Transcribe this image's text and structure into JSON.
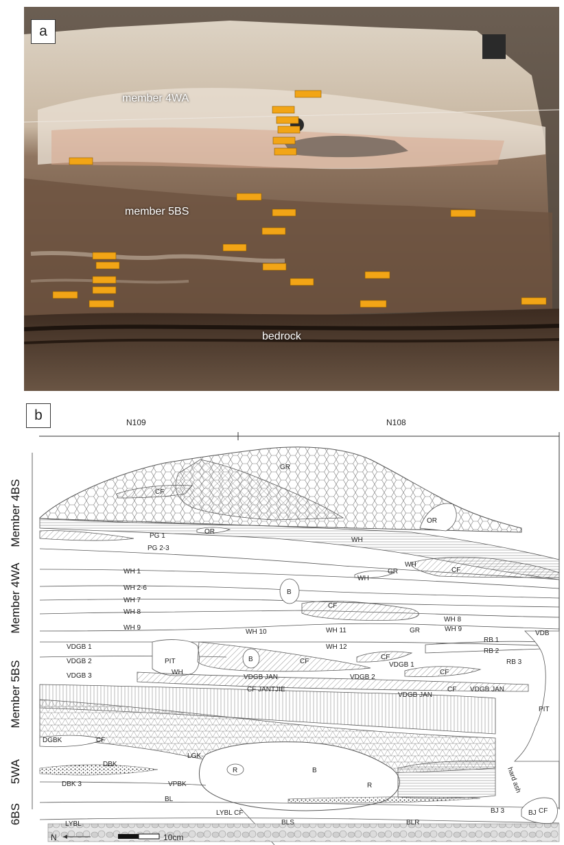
{
  "panel_a": {
    "tag": "a",
    "labels": [
      "member 4WA",
      "member 5BS",
      "bedrock"
    ]
  },
  "panel_b": {
    "tag": "b",
    "grid": [
      "N109",
      "N108"
    ],
    "members": [
      "Member 4BS",
      "Member 4WA",
      "Member 5BS",
      "5WA",
      "6BS"
    ],
    "units": [
      "GR",
      "OR",
      "CF",
      "OR",
      "PG 1",
      "WH",
      "PG 2-3",
      "WH",
      "WH 1",
      "GR",
      "CF",
      "WH",
      "WH 2-6",
      "B",
      "WH 7",
      "WH 8",
      "CF",
      "WH 9",
      "WH 10",
      "WH 11",
      "GR",
      "WH 8",
      "WH 9",
      "VDB",
      "VDGB 1",
      "WH 12",
      "RB 1",
      "RB 2",
      "VDGB 2",
      "PIT",
      "B",
      "CF",
      "CF",
      "RB 3",
      "VDGB 1",
      "CF",
      "VDGB 3",
      "WH",
      "VDGB JAN",
      "VDGB 2",
      "CF JANTJIE",
      "VDGB JAN",
      "CF",
      "VDGB JAN",
      "PIT",
      "DGBK",
      "CF",
      "DBK",
      "LGK",
      "R",
      "B",
      "R",
      "hard ash",
      "DBK 3",
      "VPBK",
      "BL",
      "LYBL CF",
      "CF",
      "BJ 3",
      "BJ",
      "LYBL",
      "BLS",
      "BLR"
    ],
    "orientation": "N",
    "scale": "10cm"
  }
}
